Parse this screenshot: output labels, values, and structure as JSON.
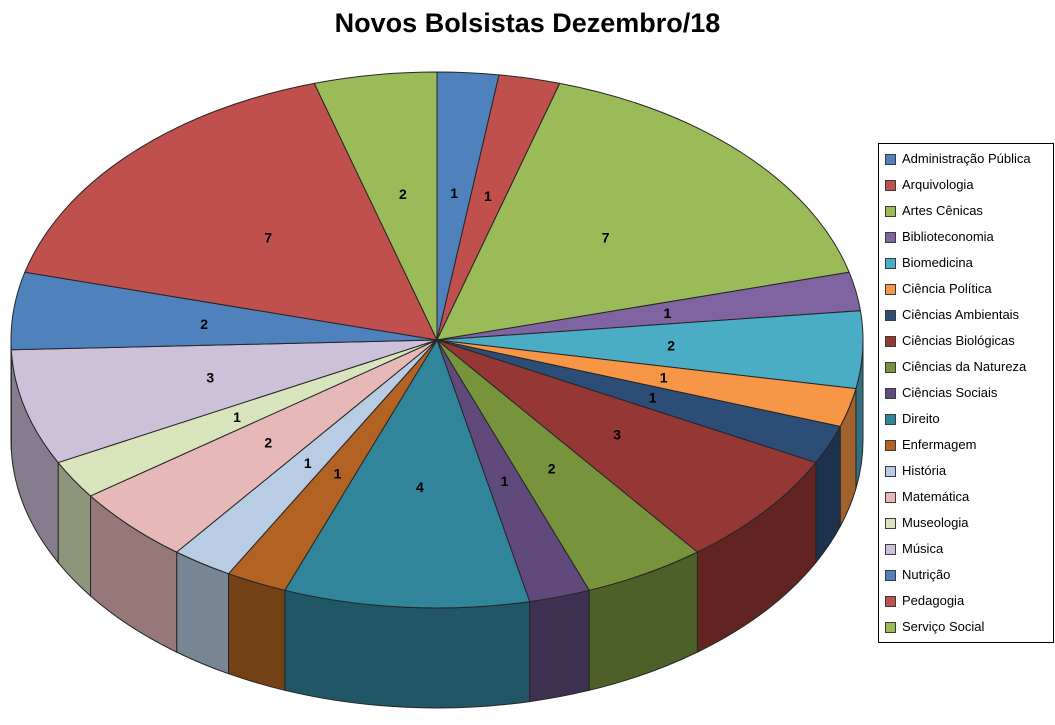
{
  "chart_data": {
    "type": "pie",
    "title": "Novos Bolsistas Dezembro/18",
    "legend_position": "right",
    "effect_3d": true,
    "direction": "clockwise",
    "start_angle_deg": 0,
    "data_labels": "value",
    "labels": [
      "Administração Pública",
      "Arquivologia",
      "Artes Cênicas",
      "Biblioteconomia",
      "Biomedicina",
      "Ciência Política",
      "Ciências Ambientais",
      "Ciências Biológicas",
      "Ciências da Natureza",
      "Ciências Sociais",
      "Direito",
      "Enfermagem",
      "História",
      "Matemática",
      "Museologia",
      "Música",
      "Nutrição",
      "Pedagogia",
      "Serviço Social"
    ],
    "values": [
      1,
      1,
      7,
      1,
      2,
      1,
      1,
      3,
      2,
      1,
      4,
      1,
      1,
      2,
      1,
      3,
      2,
      7,
      2
    ],
    "colors": [
      "#4F81BD",
      "#C0504D",
      "#9BBB59",
      "#8064A2",
      "#4BACC6",
      "#F79646",
      "#2C4D75",
      "#953735",
      "#77933C",
      "#604A7B",
      "#31859B",
      "#B26222",
      "#B8CCE4",
      "#E6B9B8",
      "#D7E4BC",
      "#CCC1D9",
      "#4F81BD",
      "#C0504D",
      "#9BBB59"
    ]
  }
}
